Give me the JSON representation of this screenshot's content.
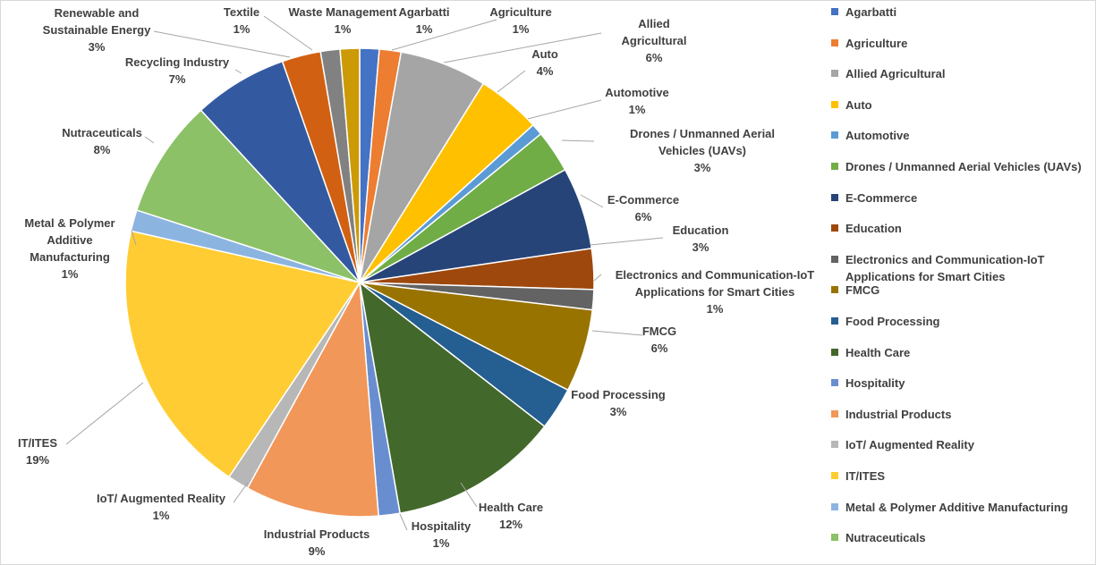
{
  "chart_data": {
    "type": "pie",
    "title": "",
    "slices": [
      {
        "label": "Agarbatti",
        "value": 1,
        "display": "1%",
        "color": "#4472C4"
      },
      {
        "label": "Agriculture",
        "value": 1,
        "display": "1%",
        "color": "#ED7D31"
      },
      {
        "label": "Allied Agricultural",
        "value": 6,
        "display": "6%",
        "color": "#A5A5A5"
      },
      {
        "label": "Auto",
        "value": 4,
        "display": "4%",
        "color": "#FFC000"
      },
      {
        "label": "Automotive",
        "value": 1,
        "display": "1%",
        "color": "#5B9BD5"
      },
      {
        "label": "Drones / Unmanned Aerial Vehicles (UAVs)",
        "value": 3,
        "display": "3%",
        "color": "#70AD47"
      },
      {
        "label": "E-Commerce",
        "value": 6,
        "display": "6%",
        "color": "#264478"
      },
      {
        "label": "Education",
        "value": 3,
        "display": "3%",
        "color": "#9E480E"
      },
      {
        "label": "Electronics and Communication-IoT Applications for Smart Cities",
        "value": 1,
        "display": "1%",
        "color": "#636363"
      },
      {
        "label": "FMCG",
        "value": 6,
        "display": "6%",
        "color": "#997300"
      },
      {
        "label": "Food Processing",
        "value": 3,
        "display": "3%",
        "color": "#255E91"
      },
      {
        "label": "Health Care",
        "value": 12,
        "display": "12%",
        "color": "#43682B"
      },
      {
        "label": "Hospitality",
        "value": 1,
        "display": "1%",
        "color": "#698ED0"
      },
      {
        "label": "Industrial Products",
        "value": 9,
        "display": "9%",
        "color": "#F1975A"
      },
      {
        "label": "IoT/ Augmented Reality",
        "value": 1,
        "display": "1%",
        "color": "#B7B7B7"
      },
      {
        "label": "IT/ITES",
        "value": 19,
        "display": "19%",
        "color": "#FFCD33"
      },
      {
        "label": "Metal & Polymer Additive Manufacturing",
        "value": 1,
        "display": "1%",
        "color": "#8CB4E0"
      },
      {
        "label": "Nutraceuticals",
        "value": 8,
        "display": "8%",
        "color": "#8CC168"
      },
      {
        "label": "Recycling Industry",
        "value": 7,
        "display": "7%",
        "color": "#335AA1"
      },
      {
        "label": "Renewable and Sustainable Energy",
        "value": 3,
        "display": "3%",
        "color": "#D26012"
      },
      {
        "label": "Textile",
        "value": 1,
        "display": "1%",
        "color": "#818181"
      },
      {
        "label": "Waste Management",
        "value": 1,
        "display": "1%",
        "color": "#CC9A06"
      }
    ],
    "legend": {
      "position": "right",
      "visible_entries": [
        "Agarbatti",
        "Agriculture",
        "Allied Agricultural",
        "Auto",
        "Automotive",
        "Drones / Unmanned Aerial Vehicles (UAVs)",
        "E-Commerce",
        "Education",
        "Electronics and Communication-IoT Applications for Smart Cities",
        "FMCG",
        "Food Processing",
        "Health Care",
        "Hospitality",
        "Industrial Products",
        "IoT/ Augmented Reality",
        "IT/ITES",
        "Metal & Polymer Additive Manufacturing",
        "Nutraceuticals"
      ]
    }
  }
}
